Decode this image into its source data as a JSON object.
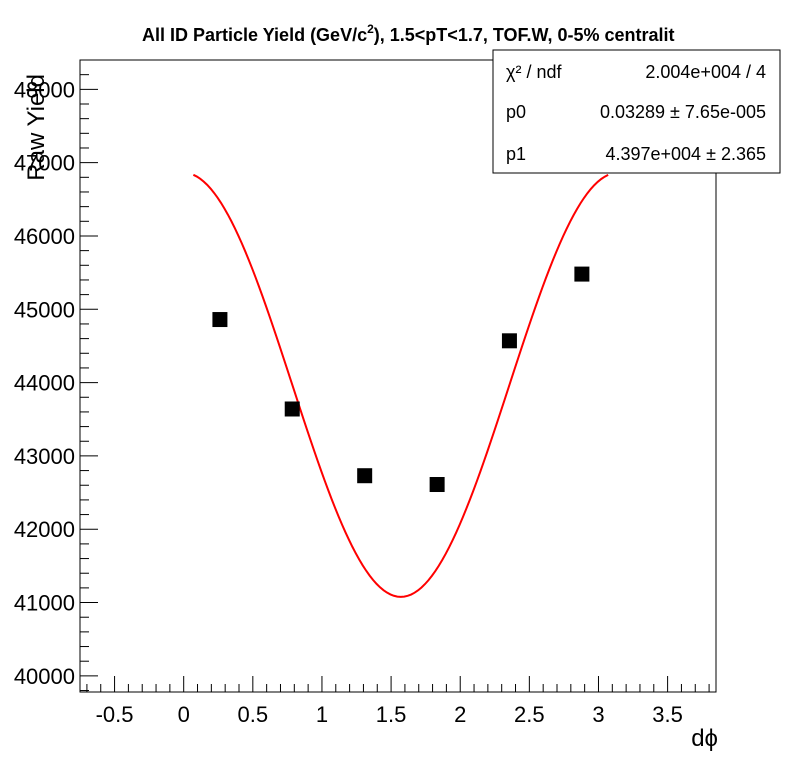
{
  "chart_data": {
    "type": "scatter",
    "title": "All ID Particle Yield (GeV/c²), 1.5<pT<1.7, TOF.W, 0-5% centralit",
    "title_parts": {
      "prefix": "All ID Particle Yield (GeV/c",
      "sup": "2",
      "suffix": "), 1.5<pT<1.7, TOF.W, 0-5% centralit"
    },
    "xlabel": "dϕ",
    "ylabel": "Raw Yield",
    "xlim": [
      -0.75,
      3.85
    ],
    "ylim": [
      39780,
      48400
    ],
    "x_ticks": [
      -0.5,
      0,
      0.5,
      1,
      1.5,
      2,
      2.5,
      3,
      3.5
    ],
    "x_tick_labels": [
      "-0.5",
      "0",
      "0.5",
      "1",
      "1.5",
      "2",
      "2.5",
      "3",
      "3.5"
    ],
    "y_ticks": [
      40000,
      41000,
      42000,
      43000,
      44000,
      45000,
      46000,
      47000,
      48000
    ],
    "y_tick_labels": [
      "40000",
      "41000",
      "42000",
      "43000",
      "44000",
      "45000",
      "46000",
      "47000",
      "48000"
    ],
    "series": [
      {
        "marker": "square",
        "color": "#000000",
        "x": [
          0.262,
          0.785,
          1.309,
          1.833,
          2.356,
          2.88
        ],
        "y": [
          44860,
          43640,
          42730,
          42610,
          44570,
          45480
        ]
      }
    ],
    "fit": {
      "color": "#ff0000",
      "x_range": [
        0.07,
        3.07
      ],
      "p0": 0.03289,
      "p1": 43970
    },
    "stats_box": {
      "rows": [
        {
          "label": "χ² / ndf",
          "value": "2.004e+004 / 4"
        },
        {
          "label": "p0",
          "value": "0.03289 ± 7.65e-005"
        },
        {
          "label": "p1",
          "value": "4.397e+004 ± 2.365"
        }
      ]
    },
    "grid": false,
    "legend": "none"
  }
}
